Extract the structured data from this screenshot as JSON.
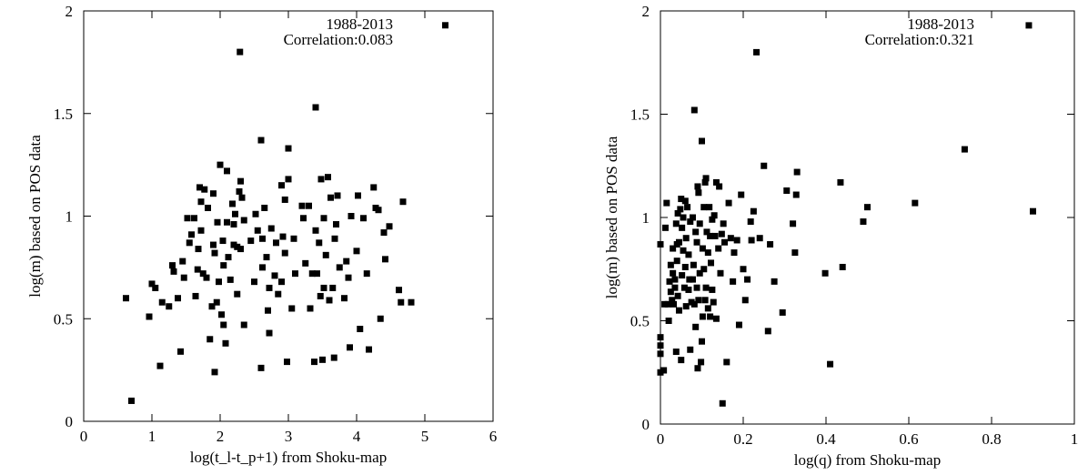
{
  "chart_data": [
    {
      "type": "scatter",
      "title": "",
      "xlabel": "log(t_l-t_p+1) from Shoku-map",
      "ylabel": "log(m) based on POS data",
      "annotation": [
        "1988-2013",
        "Correlation:0.083"
      ],
      "xlim": [
        0,
        6
      ],
      "ylim": [
        0,
        2
      ],
      "xticks": [
        "0",
        "1",
        "2",
        "3",
        "4",
        "5",
        "6"
      ],
      "yticks": [
        "0",
        "0.5",
        "1",
        "1.5",
        "2"
      ],
      "grid": false,
      "marker": "square",
      "color": "#000000",
      "points": [
        [
          0.62,
          0.6
        ],
        [
          0.7,
          0.1
        ],
        [
          0.96,
          0.51
        ],
        [
          1.0,
          0.67
        ],
        [
          1.05,
          0.65
        ],
        [
          1.12,
          0.27
        ],
        [
          1.15,
          0.58
        ],
        [
          1.25,
          0.56
        ],
        [
          1.3,
          0.76
        ],
        [
          1.32,
          0.73
        ],
        [
          1.38,
          0.6
        ],
        [
          1.42,
          0.34
        ],
        [
          1.45,
          0.78
        ],
        [
          1.47,
          0.7
        ],
        [
          1.52,
          0.99
        ],
        [
          1.55,
          0.87
        ],
        [
          1.58,
          0.91
        ],
        [
          1.62,
          0.99
        ],
        [
          1.64,
          0.61
        ],
        [
          1.67,
          0.74
        ],
        [
          1.68,
          0.84
        ],
        [
          1.7,
          1.14
        ],
        [
          1.72,
          1.07
        ],
        [
          1.72,
          0.93
        ],
        [
          1.75,
          0.72
        ],
        [
          1.77,
          1.13
        ],
        [
          1.8,
          0.7
        ],
        [
          1.82,
          1.04
        ],
        [
          1.85,
          0.4
        ],
        [
          1.88,
          0.56
        ],
        [
          1.9,
          1.11
        ],
        [
          1.9,
          0.86
        ],
        [
          1.92,
          0.24
        ],
        [
          1.92,
          0.82
        ],
        [
          1.95,
          0.58
        ],
        [
          1.96,
          0.97
        ],
        [
          1.98,
          0.68
        ],
        [
          2.0,
          1.25
        ],
        [
          2.02,
          0.52
        ],
        [
          2.04,
          0.88
        ],
        [
          2.05,
          0.76
        ],
        [
          2.05,
          0.47
        ],
        [
          2.08,
          0.38
        ],
        [
          2.1,
          0.97
        ],
        [
          2.1,
          1.22
        ],
        [
          2.12,
          0.8
        ],
        [
          2.15,
          0.69
        ],
        [
          2.18,
          1.06
        ],
        [
          2.2,
          0.96
        ],
        [
          2.2,
          0.86
        ],
        [
          2.22,
          1.01
        ],
        [
          2.25,
          0.85
        ],
        [
          2.25,
          0.62
        ],
        [
          2.28,
          1.12
        ],
        [
          2.29,
          1.8
        ],
        [
          2.3,
          1.17
        ],
        [
          2.3,
          0.84
        ],
        [
          2.32,
          1.09
        ],
        [
          2.35,
          0.98
        ],
        [
          2.35,
          0.47
        ],
        [
          2.45,
          0.88
        ],
        [
          2.5,
          0.68
        ],
        [
          2.52,
          1.01
        ],
        [
          2.55,
          0.93
        ],
        [
          2.6,
          1.37
        ],
        [
          2.6,
          0.26
        ],
        [
          2.62,
          0.75
        ],
        [
          2.62,
          0.89
        ],
        [
          2.65,
          1.04
        ],
        [
          2.68,
          0.8
        ],
        [
          2.7,
          0.54
        ],
        [
          2.72,
          0.43
        ],
        [
          2.72,
          0.65
        ],
        [
          2.75,
          0.94
        ],
        [
          2.8,
          0.71
        ],
        [
          2.82,
          0.87
        ],
        [
          2.85,
          0.62
        ],
        [
          2.9,
          0.68
        ],
        [
          2.9,
          1.15
        ],
        [
          2.92,
          0.9
        ],
        [
          2.95,
          0.82
        ],
        [
          2.95,
          1.08
        ],
        [
          2.98,
          0.29
        ],
        [
          3.0,
          1.18
        ],
        [
          3.0,
          1.33
        ],
        [
          3.05,
          0.55
        ],
        [
          3.08,
          0.89
        ],
        [
          3.1,
          0.72
        ],
        [
          3.2,
          1.05
        ],
        [
          3.22,
          0.99
        ],
        [
          3.25,
          0.77
        ],
        [
          3.3,
          1.05
        ],
        [
          3.32,
          0.55
        ],
        [
          3.35,
          0.72
        ],
        [
          3.38,
          0.29
        ],
        [
          3.4,
          0.93
        ],
        [
          3.4,
          1.53
        ],
        [
          3.42,
          0.72
        ],
        [
          3.45,
          0.87
        ],
        [
          3.47,
          0.61
        ],
        [
          3.48,
          1.18
        ],
        [
          3.5,
          0.3
        ],
        [
          3.52,
          0.65
        ],
        [
          3.52,
          0.99
        ],
        [
          3.55,
          0.81
        ],
        [
          3.58,
          1.19
        ],
        [
          3.6,
          0.59
        ],
        [
          3.62,
          1.09
        ],
        [
          3.65,
          0.65
        ],
        [
          3.67,
          0.31
        ],
        [
          3.68,
          0.89
        ],
        [
          3.7,
          0.96
        ],
        [
          3.72,
          1.1
        ],
        [
          3.75,
          0.75
        ],
        [
          3.82,
          0.6
        ],
        [
          3.85,
          0.78
        ],
        [
          3.88,
          0.7
        ],
        [
          3.9,
          0.36
        ],
        [
          3.92,
          1.0
        ],
        [
          4.0,
          0.83
        ],
        [
          4.02,
          1.1
        ],
        [
          4.05,
          0.45
        ],
        [
          4.1,
          0.99
        ],
        [
          4.15,
          0.72
        ],
        [
          4.18,
          0.35
        ],
        [
          4.25,
          1.14
        ],
        [
          4.28,
          1.04
        ],
        [
          4.32,
          1.03
        ],
        [
          4.35,
          0.5
        ],
        [
          4.4,
          0.92
        ],
        [
          4.42,
          0.79
        ],
        [
          4.48,
          0.95
        ],
        [
          4.62,
          0.64
        ],
        [
          4.65,
          0.58
        ],
        [
          4.68,
          1.07
        ],
        [
          4.8,
          0.58
        ],
        [
          5.3,
          1.93
        ]
      ]
    },
    {
      "type": "scatter",
      "title": "",
      "xlabel": "log(q) from Shoku-map",
      "ylabel": "log(m) based on POS data",
      "annotation": [
        "1988-2013",
        "Correlation:0.321"
      ],
      "xlim": [
        0,
        1
      ],
      "ylim": [
        0,
        2
      ],
      "xticks": [
        "0",
        "0.2",
        "0.4",
        "0.6",
        "0.8",
        "1"
      ],
      "yticks": [
        "0",
        "0.5",
        "1",
        "1.5",
        "2"
      ],
      "grid": false,
      "marker": "square",
      "color": "#000000",
      "points": [
        [
          0.0,
          0.87
        ],
        [
          0.0,
          0.42
        ],
        [
          0.0,
          0.38
        ],
        [
          0.0,
          0.34
        ],
        [
          0.0,
          0.25
        ],
        [
          0.008,
          0.26
        ],
        [
          0.01,
          0.58
        ],
        [
          0.012,
          0.95
        ],
        [
          0.015,
          1.07
        ],
        [
          0.018,
          0.58
        ],
        [
          0.02,
          0.5
        ],
        [
          0.022,
          0.69
        ],
        [
          0.025,
          0.77
        ],
        [
          0.025,
          0.64
        ],
        [
          0.028,
          0.6
        ],
        [
          0.03,
          0.85
        ],
        [
          0.03,
          0.73
        ],
        [
          0.032,
          0.58
        ],
        [
          0.035,
          0.7
        ],
        [
          0.035,
          0.66
        ],
        [
          0.038,
          0.35
        ],
        [
          0.038,
          0.97
        ],
        [
          0.04,
          0.87
        ],
        [
          0.04,
          0.79
        ],
        [
          0.042,
          0.62
        ],
        [
          0.042,
          1.02
        ],
        [
          0.045,
          0.55
        ],
        [
          0.045,
          0.88
        ],
        [
          0.048,
          1.04
        ],
        [
          0.05,
          1.09
        ],
        [
          0.05,
          0.31
        ],
        [
          0.052,
          0.95
        ],
        [
          0.052,
          0.72
        ],
        [
          0.055,
          0.84
        ],
        [
          0.055,
          1.0
        ],
        [
          0.058,
          0.66
        ],
        [
          0.06,
          1.08
        ],
        [
          0.06,
          0.76
        ],
        [
          0.062,
          0.57
        ],
        [
          0.062,
          0.9
        ],
        [
          0.065,
          1.05
        ],
        [
          0.068,
          0.65
        ],
        [
          0.068,
          0.82
        ],
        [
          0.07,
          0.7
        ],
        [
          0.072,
          0.36
        ],
        [
          0.072,
          0.98
        ],
        [
          0.075,
          0.59
        ],
        [
          0.078,
          1.0
        ],
        [
          0.078,
          0.7
        ],
        [
          0.08,
          0.77
        ],
        [
          0.082,
          1.52
        ],
        [
          0.082,
          0.58
        ],
        [
          0.085,
          0.47
        ],
        [
          0.085,
          0.93
        ],
        [
          0.088,
          0.88
        ],
        [
          0.088,
          0.66
        ],
        [
          0.09,
          1.15
        ],
        [
          0.09,
          0.27
        ],
        [
          0.092,
          0.6
        ],
        [
          0.092,
          1.12
        ],
        [
          0.095,
          0.97
        ],
        [
          0.095,
          0.73
        ],
        [
          0.098,
          0.3
        ],
        [
          0.1,
          1.37
        ],
        [
          0.1,
          0.4
        ],
        [
          0.102,
          0.52
        ],
        [
          0.102,
          0.85
        ],
        [
          0.105,
          1.05
        ],
        [
          0.105,
          0.75
        ],
        [
          0.108,
          1.17
        ],
        [
          0.108,
          0.6
        ],
        [
          0.11,
          1.19
        ],
        [
          0.11,
          0.66
        ],
        [
          0.112,
          0.93
        ],
        [
          0.115,
          0.56
        ],
        [
          0.115,
          0.83
        ],
        [
          0.118,
          1.05
        ],
        [
          0.12,
          0.91
        ],
        [
          0.12,
          0.52
        ],
        [
          0.122,
          0.78
        ],
        [
          0.125,
          0.99
        ],
        [
          0.125,
          0.65
        ],
        [
          0.128,
          0.59
        ],
        [
          0.13,
          1.01
        ],
        [
          0.132,
          0.91
        ],
        [
          0.135,
          1.17
        ],
        [
          0.135,
          0.51
        ],
        [
          0.14,
          0.85
        ],
        [
          0.142,
          1.15
        ],
        [
          0.145,
          0.73
        ],
        [
          0.148,
          0.92
        ],
        [
          0.15,
          0.1
        ],
        [
          0.152,
          0.97
        ],
        [
          0.155,
          0.88
        ],
        [
          0.16,
          0.3
        ],
        [
          0.165,
          1.07
        ],
        [
          0.17,
          0.9
        ],
        [
          0.175,
          0.69
        ],
        [
          0.178,
          0.83
        ],
        [
          0.185,
          0.89
        ],
        [
          0.19,
          0.48
        ],
        [
          0.195,
          1.11
        ],
        [
          0.2,
          0.75
        ],
        [
          0.205,
          0.6
        ],
        [
          0.21,
          0.7
        ],
        [
          0.218,
          0.98
        ],
        [
          0.22,
          0.89
        ],
        [
          0.225,
          1.03
        ],
        [
          0.232,
          1.8
        ],
        [
          0.24,
          0.9
        ],
        [
          0.25,
          1.25
        ],
        [
          0.26,
          0.45
        ],
        [
          0.265,
          0.87
        ],
        [
          0.275,
          0.69
        ],
        [
          0.295,
          0.54
        ],
        [
          0.305,
          1.13
        ],
        [
          0.32,
          0.97
        ],
        [
          0.325,
          0.83
        ],
        [
          0.328,
          1.11
        ],
        [
          0.33,
          1.22
        ],
        [
          0.398,
          0.73
        ],
        [
          0.41,
          0.29
        ],
        [
          0.435,
          1.17
        ],
        [
          0.44,
          0.76
        ],
        [
          0.49,
          0.98
        ],
        [
          0.5,
          1.05
        ],
        [
          0.615,
          1.07
        ],
        [
          0.735,
          1.33
        ],
        [
          0.89,
          1.93
        ],
        [
          0.9,
          1.03
        ]
      ]
    }
  ]
}
